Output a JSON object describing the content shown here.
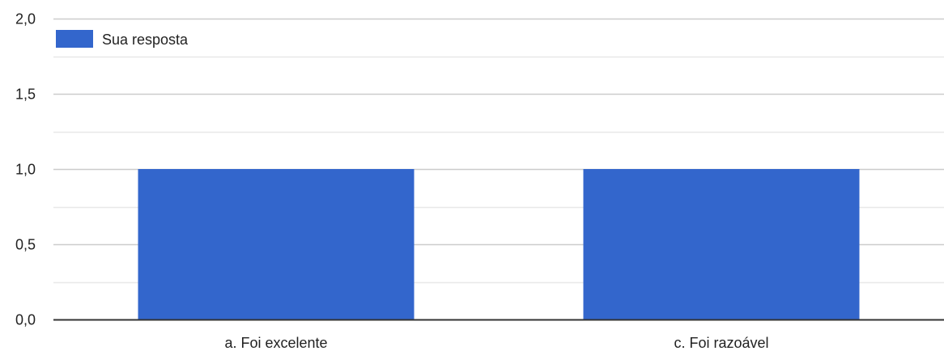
{
  "chart_data": {
    "type": "bar",
    "categories": [
      "a. Foi excelente",
      "c. Foi razoável"
    ],
    "series": [
      {
        "name": "Sua resposta",
        "values": [
          1,
          1
        ],
        "color": "#3366cc"
      }
    ],
    "ylim": [
      0,
      2
    ],
    "y_ticks": [
      "0,0",
      "0,5",
      "1,0",
      "1,5",
      "2,0"
    ],
    "y_tick_values": [
      0,
      0.5,
      1,
      1.5,
      2
    ],
    "minor_grid_values": [
      0.25,
      0.75,
      1.25,
      1.75
    ],
    "grid": true,
    "legend_position": "top-left",
    "colors": {
      "gridline": "#cccccc",
      "minor_gridline": "#e8e8e8",
      "baseline": "#333333"
    }
  }
}
